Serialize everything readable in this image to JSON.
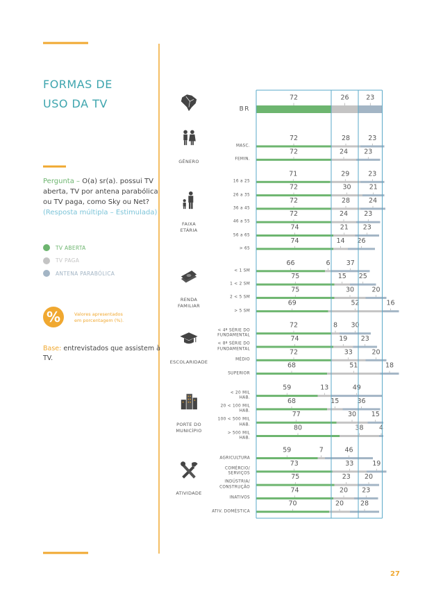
{
  "title": "FORMAS DE\nUSO DA TV",
  "question": {
    "label": "Pergunta –",
    "text": "O(a) sr(a). possui TV aberta, TV por antena parabólica ou TV paga, como Sky ou Net?",
    "note": "(Resposta múltipla – Estimulada)"
  },
  "units_note": {
    "symbol": "%",
    "text": "Valores apresentados em porcentagem (%)."
  },
  "base": {
    "label": "Base:",
    "text": "entrevistados que assistem à TV."
  },
  "page_number": "27",
  "chart_data": {
    "type": "bar",
    "orientation": "horizontal",
    "stacked": true,
    "series": [
      {
        "name": "TV ABERTA",
        "color": "#6db56f"
      },
      {
        "name": "TV PAGA",
        "color": "#c4c4c4"
      },
      {
        "name": "ANTENA PARABÓLICA",
        "color": "#a3b5c5"
      }
    ],
    "groups": [
      {
        "name": null,
        "rows": [
          {
            "label": "BR",
            "values": [
              72,
              26,
              23
            ]
          }
        ]
      },
      {
        "name": "GÊNERO",
        "rows": [
          {
            "label": "MASC.",
            "values": [
              72,
              28,
              23
            ]
          },
          {
            "label": "FEMIN.",
            "values": [
              72,
              24,
              23
            ]
          }
        ]
      },
      {
        "name": "FAIXA\nETÁRIA",
        "rows": [
          {
            "label": "16 a 25",
            "values": [
              71,
              29,
              23
            ]
          },
          {
            "label": "26 a 35",
            "values": [
              72,
              30,
              21
            ]
          },
          {
            "label": "36 a 45",
            "values": [
              72,
              28,
              24
            ]
          },
          {
            "label": "46 a 55",
            "values": [
              72,
              24,
              23
            ]
          },
          {
            "label": "56 a 65",
            "values": [
              74,
              21,
              23
            ]
          },
          {
            "label": "> 65",
            "values": [
              74,
              14,
              26
            ]
          }
        ]
      },
      {
        "name": "RENDA\nFAMILIAR",
        "rows": [
          {
            "label": "< 1 SM",
            "values": [
              66,
              6,
              37
            ]
          },
          {
            "label": "1 < 2 SM",
            "values": [
              75,
              15,
              25
            ]
          },
          {
            "label": "2 < 5 SM",
            "values": [
              75,
              30,
              20
            ]
          },
          {
            "label": "> 5 SM",
            "values": [
              69,
              52,
              16
            ]
          }
        ]
      },
      {
        "name": "ESCOLARIDADE",
        "rows": [
          {
            "label": "< 4ª SÉRIE DO\nFUNDAMENTAL",
            "values": [
              72,
              8,
              30
            ]
          },
          {
            "label": "< 8ª SÉRIE DO\nFUNDAMENTAL",
            "values": [
              74,
              19,
              23
            ]
          },
          {
            "label": "MÉDIO",
            "values": [
              72,
              33,
              20
            ]
          },
          {
            "label": "SUPERIOR",
            "values": [
              68,
              51,
              18
            ]
          }
        ]
      },
      {
        "name": "PORTE DO\nMUNICÍPIO",
        "rows": [
          {
            "label": "< 20 MIL\nHAB.",
            "values": [
              59,
              13,
              49
            ]
          },
          {
            "label": "20 < 100 MIL\nHAB.",
            "values": [
              68,
              15,
              36
            ]
          },
          {
            "label": "100 < 500 MIL\nHAB.",
            "values": [
              77,
              30,
              15
            ]
          },
          {
            "label": "> 500 MIL\nHAB.",
            "values": [
              80,
              38,
              4
            ]
          }
        ]
      },
      {
        "name": "ATIVIDADE",
        "rows": [
          {
            "label": "AGRICULTURA",
            "values": [
              59,
              7,
              46
            ]
          },
          {
            "label": "COMÉRCIO/\nSERVIÇOS",
            "values": [
              73,
              33,
              19
            ]
          },
          {
            "label": "INDÚSTRIA/\nCONSTRUÇÃO",
            "values": [
              75,
              23,
              20
            ]
          },
          {
            "label": "INATIVOS",
            "values": [
              74,
              20,
              23
            ]
          },
          {
            "label": "ATIV. DOMÉSTICA",
            "values": [
              70,
              20,
              28
            ]
          }
        ]
      }
    ]
  }
}
